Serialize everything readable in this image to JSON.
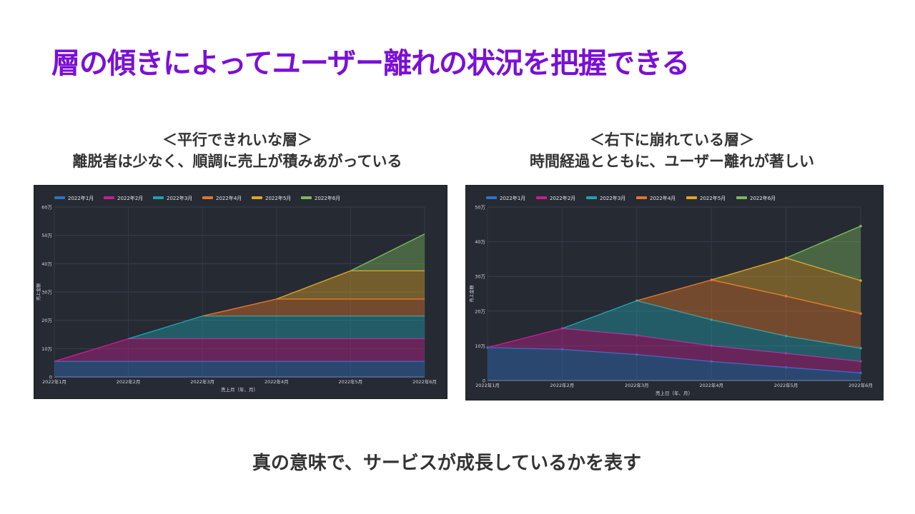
{
  "title": "層の傾きによってユーザー離れの状況を把握できる",
  "captions": {
    "left": {
      "line1": "＜平行できれいな層＞",
      "line2": "離脱者は少なく、順調に売上が積みあがっている"
    },
    "right": {
      "line1": "＜右下に崩れている層＞",
      "line2": "時間経過とともに、ユーザー離れが著しい"
    }
  },
  "footer": "真の意味で、サービスが成長しているかを表す",
  "colors": {
    "panel_bg": "#262a33",
    "series": [
      "#2f72c4",
      "#c2208e",
      "#1fa3ad",
      "#e0762b",
      "#e0a526",
      "#7ab85a"
    ]
  },
  "chart_data": [
    {
      "type": "area",
      "stacked": true,
      "x": [
        "2022年1月",
        "2022年2月",
        "2022年3月",
        "2022年4月",
        "2022年5月",
        "2022年6月"
      ],
      "ylabel": "売上金額",
      "xlabel": "売上月（年、月）",
      "ylim": [
        0,
        600000
      ],
      "yticks": [
        "0",
        "10万",
        "20万",
        "30万",
        "40万",
        "50万",
        "60万"
      ],
      "grid": true,
      "legend_position": "top-left",
      "series": [
        {
          "name": "2022年1月",
          "values": [
            55000,
            55000,
            55000,
            55000,
            55000,
            55000
          ]
        },
        {
          "name": "2022年2月",
          "values": [
            null,
            80000,
            80000,
            80000,
            80000,
            80000
          ]
        },
        {
          "name": "2022年3月",
          "values": [
            null,
            null,
            80000,
            80000,
            80000,
            80000
          ]
        },
        {
          "name": "2022年4月",
          "values": [
            null,
            null,
            null,
            60000,
            60000,
            60000
          ]
        },
        {
          "name": "2022年5月",
          "values": [
            null,
            null,
            null,
            null,
            100000,
            100000
          ]
        },
        {
          "name": "2022年6月",
          "values": [
            null,
            null,
            null,
            null,
            null,
            130000
          ]
        }
      ]
    },
    {
      "type": "area",
      "stacked": true,
      "x": [
        "2022年1月",
        "2022年2月",
        "2022年3月",
        "2022年4月",
        "2022年5月",
        "2022年6月"
      ],
      "ylabel": "売上金額",
      "xlabel": "売上日（年、月）",
      "ylim": [
        0,
        500000
      ],
      "yticks": [
        "0",
        "10万",
        "20万",
        "30万",
        "40万",
        "50万"
      ],
      "grid": true,
      "legend_position": "top-left",
      "series": [
        {
          "name": "2022年1月",
          "values": [
            95000,
            90000,
            75000,
            55000,
            38000,
            22000
          ]
        },
        {
          "name": "2022年2月",
          "values": [
            null,
            60000,
            55000,
            45000,
            40000,
            33000
          ]
        },
        {
          "name": "2022年3月",
          "values": [
            null,
            null,
            100000,
            75000,
            50000,
            38000
          ]
        },
        {
          "name": "2022年4月",
          "values": [
            null,
            null,
            null,
            115000,
            115000,
            100000
          ]
        },
        {
          "name": "2022年5月",
          "values": [
            null,
            null,
            null,
            null,
            110000,
            95000
          ]
        },
        {
          "name": "2022年6月",
          "values": [
            null,
            null,
            null,
            null,
            null,
            157000
          ]
        }
      ]
    }
  ]
}
